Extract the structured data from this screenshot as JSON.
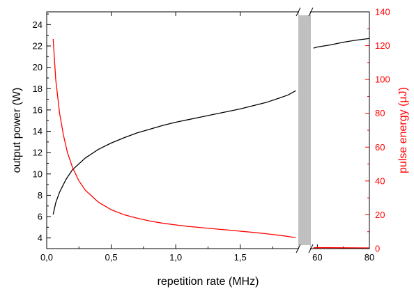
{
  "chart_data": {
    "type": "line",
    "title": "",
    "xlabel": "repetition rate (MHz)",
    "ylabel_left": "output power (W)",
    "ylabel_right": "pulse energy (µJ)",
    "x_break": {
      "left_segment_range": [
        0.0,
        1.95
      ],
      "right_segment_range": [
        57.5,
        80
      ],
      "gap_color": "#c0c0c0"
    },
    "x_ticks_left": [
      "0,0",
      "0,5",
      "1,0",
      "1,5"
    ],
    "x_tick_values_left": [
      0.0,
      0.5,
      1.0,
      1.5
    ],
    "x_ticks_right": [
      "60",
      "80"
    ],
    "x_tick_values_right": [
      60,
      80
    ],
    "y_left_ticks": [
      "4",
      "6",
      "8",
      "10",
      "12",
      "14",
      "16",
      "18",
      "20",
      "22",
      "24"
    ],
    "y_left_tick_values": [
      4,
      6,
      8,
      10,
      12,
      14,
      16,
      18,
      20,
      22,
      24
    ],
    "y_left_range": [
      3.0,
      25.2
    ],
    "y_right_ticks": [
      "0",
      "20",
      "40",
      "60",
      "80",
      "100",
      "120",
      "140"
    ],
    "y_right_tick_values": [
      0,
      20,
      40,
      60,
      80,
      100,
      120,
      140
    ],
    "y_right_range": [
      0,
      140
    ],
    "series": [
      {
        "axis": "left",
        "color": "#000000",
        "points": [
          [
            0.05,
            6.2
          ],
          [
            0.07,
            7.3
          ],
          [
            0.1,
            8.3
          ],
          [
            0.15,
            9.5
          ],
          [
            0.2,
            10.4
          ],
          [
            0.3,
            11.5
          ],
          [
            0.4,
            12.3
          ],
          [
            0.5,
            12.9
          ],
          [
            0.6,
            13.4
          ],
          [
            0.7,
            13.85
          ],
          [
            0.8,
            14.2
          ],
          [
            0.9,
            14.55
          ],
          [
            1.0,
            14.85
          ],
          [
            1.1,
            15.1
          ],
          [
            1.2,
            15.35
          ],
          [
            1.3,
            15.6
          ],
          [
            1.4,
            15.85
          ],
          [
            1.5,
            16.1
          ],
          [
            1.6,
            16.4
          ],
          [
            1.7,
            16.7
          ],
          [
            1.8,
            17.1
          ],
          [
            1.87,
            17.4
          ],
          [
            1.93,
            17.8
          ]
        ],
        "points_right": [
          [
            58.5,
            21.8
          ],
          [
            60,
            21.9
          ],
          [
            65,
            22.1
          ],
          [
            70,
            22.35
          ],
          [
            75,
            22.55
          ],
          [
            80,
            22.7
          ]
        ]
      },
      {
        "axis": "right",
        "color": "#ff0000",
        "points": [
          [
            0.05,
            124
          ],
          [
            0.07,
            100
          ],
          [
            0.1,
            80
          ],
          [
            0.13,
            67
          ],
          [
            0.16,
            57
          ],
          [
            0.2,
            48
          ],
          [
            0.25,
            40
          ],
          [
            0.3,
            34.5
          ],
          [
            0.4,
            27.5
          ],
          [
            0.5,
            23
          ],
          [
            0.6,
            20
          ],
          [
            0.7,
            18
          ],
          [
            0.8,
            16.3
          ],
          [
            0.9,
            15
          ],
          [
            1.0,
            14
          ],
          [
            1.1,
            13.1
          ],
          [
            1.2,
            12.4
          ],
          [
            1.3,
            11.7
          ],
          [
            1.4,
            11
          ],
          [
            1.5,
            10.3
          ],
          [
            1.6,
            9.6
          ],
          [
            1.7,
            8.8
          ],
          [
            1.8,
            7.9
          ],
          [
            1.87,
            7.2
          ],
          [
            1.93,
            6.5
          ]
        ],
        "points_right": [
          [
            58.5,
            0.5
          ],
          [
            60,
            0.6
          ],
          [
            70,
            0.5
          ],
          [
            80,
            0.4
          ]
        ]
      }
    ]
  }
}
